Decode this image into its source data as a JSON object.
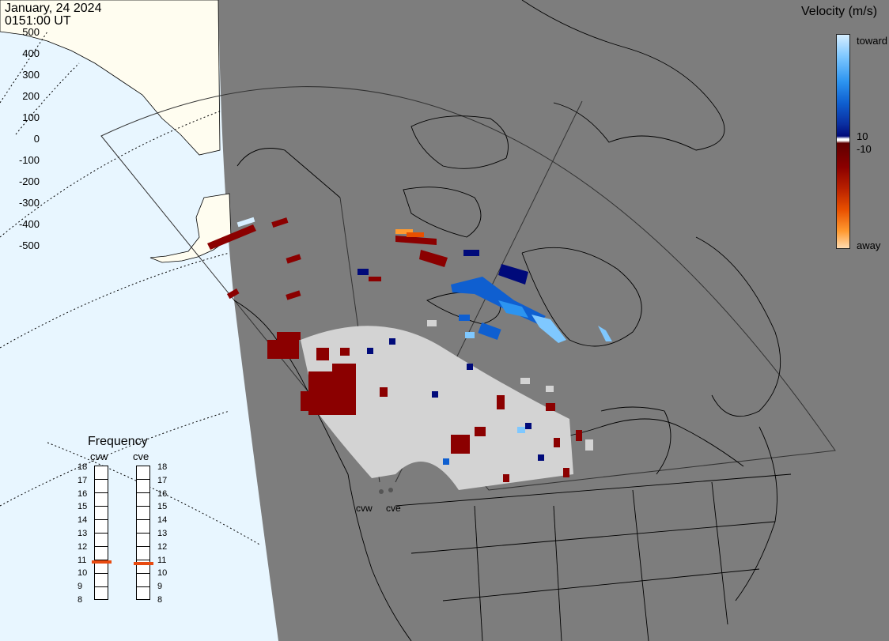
{
  "header": {
    "date": "January, 24 2024",
    "time": "0151:00 UT"
  },
  "legend": {
    "title": "Velocity (m/s)",
    "ticks": [
      "500",
      "400",
      "300",
      "200",
      "100",
      "0",
      "-100",
      "-200",
      "-300",
      "-400",
      "-500"
    ],
    "inner_positive": "10",
    "inner_negative": "-10",
    "toward_label": "toward",
    "away_label": "away",
    "colors": [
      "#d6eeff",
      "#7fc8ff",
      "#2c94f0",
      "#0f5fd0",
      "#000a7a",
      "#ffffff",
      "#8b0000",
      "#b82000",
      "#e85000",
      "#ff9a30",
      "#ffdcb0"
    ]
  },
  "frequency": {
    "title": "Frequency",
    "radars": [
      {
        "name": "cvw",
        "value_mhz": 10.9
      },
      {
        "name": "cve",
        "value_mhz": 10.8
      }
    ],
    "scale": [
      "18",
      "17",
      "16",
      "15",
      "14",
      "13",
      "12",
      "11",
      "10",
      "9",
      "8"
    ]
  },
  "sites": [
    {
      "label": "cvw"
    },
    {
      "label": "cve"
    }
  ],
  "map": {
    "colors": {
      "ocean_day": "#e8f6ff",
      "land_day": "#fffdf0",
      "night": "#7d7d7d",
      "ground_scatter": "#d3d3d3"
    }
  }
}
